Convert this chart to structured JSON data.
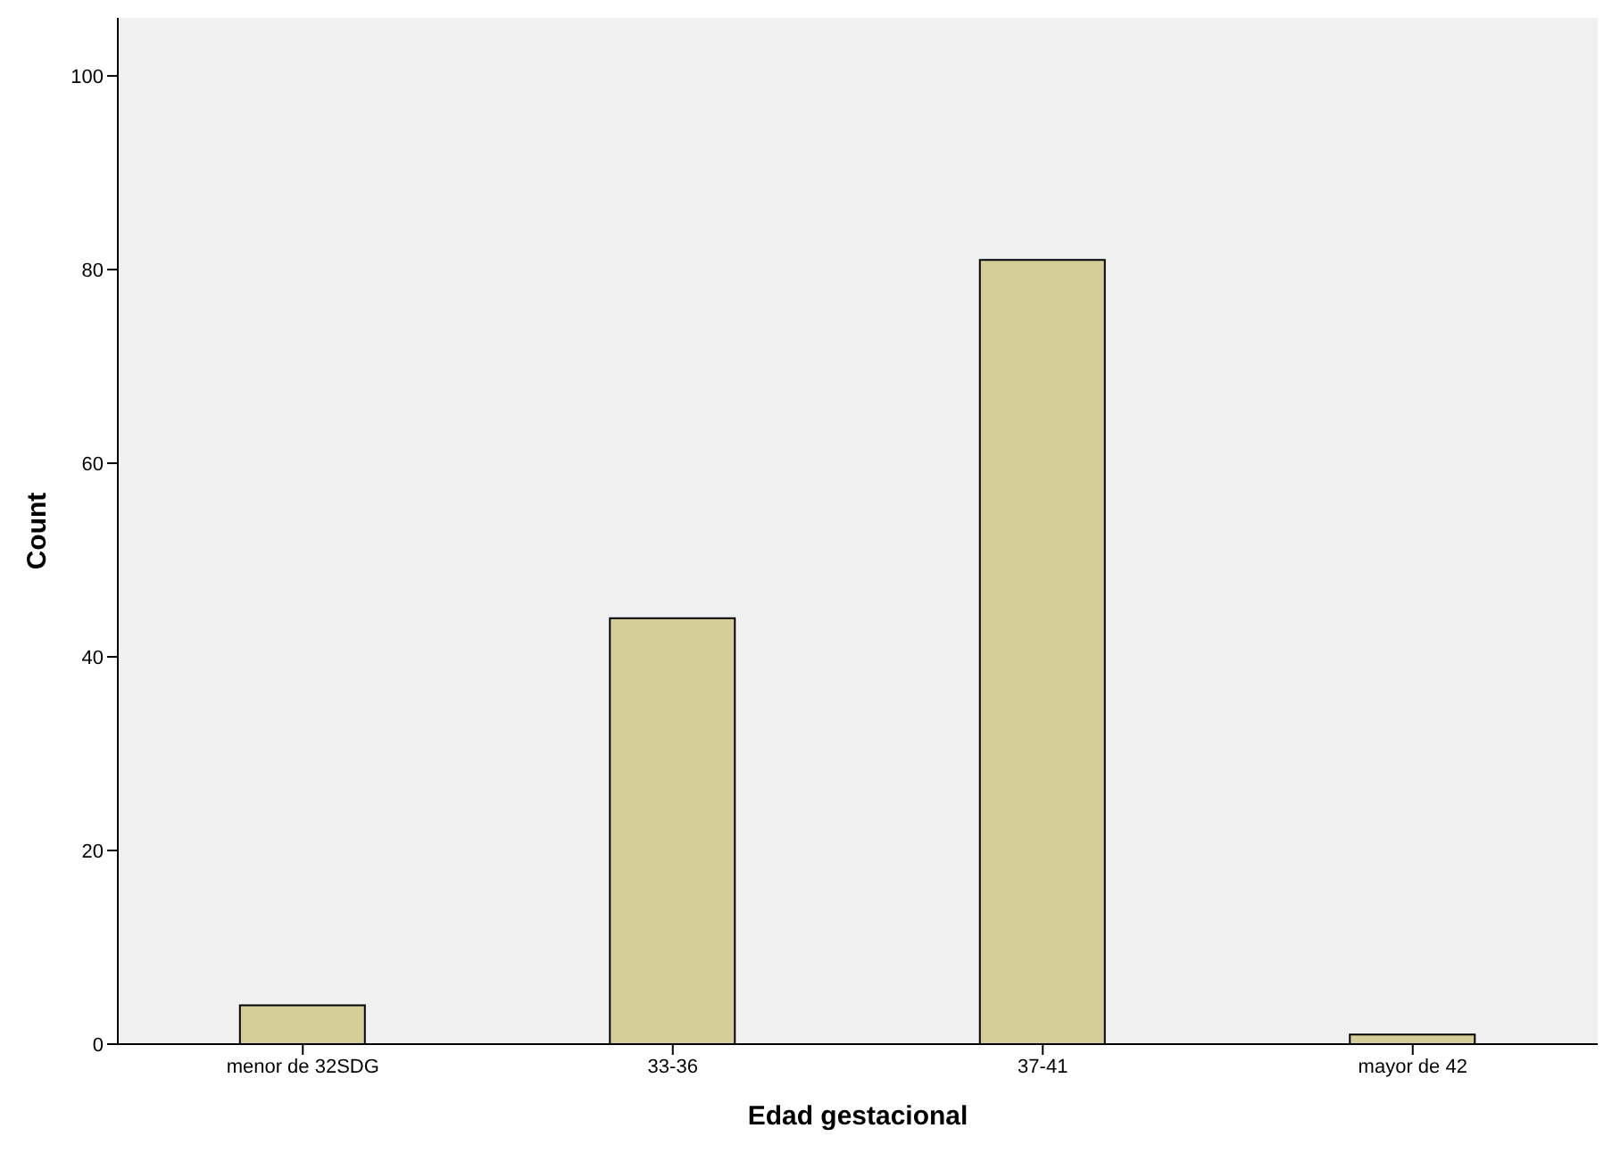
{
  "chart_data": {
    "type": "bar",
    "xlabel": "Edad gestacional",
    "ylabel": "Count",
    "categories": [
      "menor de 32SDG",
      "33-36",
      "37-41",
      "mayor de 42"
    ],
    "values": [
      4,
      44,
      81,
      1
    ],
    "color": "#d3ce98",
    "ylim": [
      0,
      106
    ],
    "yticks": [
      0,
      20,
      40,
      60,
      80,
      100
    ],
    "grid": false,
    "legend": false
  }
}
